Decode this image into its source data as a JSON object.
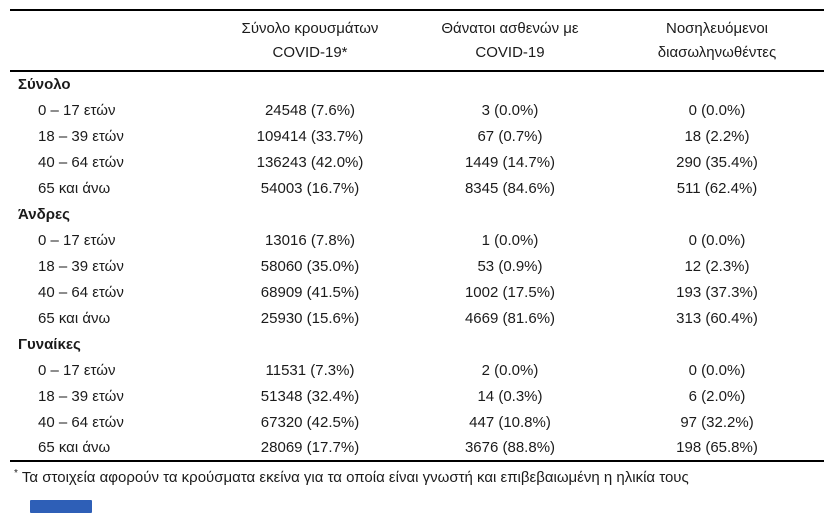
{
  "header": {
    "col_cases": {
      "line1": "Σύνολο κρουσμάτων",
      "line2": "COVID-19*"
    },
    "col_deaths": {
      "line1": "Θάνατοι ασθενών με",
      "line2": "COVID-19"
    },
    "col_icu": {
      "line1": "Νοσηλευόμενοι",
      "line2": "διασωληνωθέντες"
    }
  },
  "rows": [
    {
      "type": "section",
      "label": "Σύνολο"
    },
    {
      "type": "data",
      "label": "0 – 17 ετών",
      "cases": "24548 (7.6%)",
      "deaths": "3 (0.0%)",
      "intubated": "0 (0.0%)"
    },
    {
      "type": "data",
      "label": "18 – 39 ετών",
      "cases": "109414 (33.7%)",
      "deaths": "67 (0.7%)",
      "intubated": "18 (2.2%)"
    },
    {
      "type": "data",
      "label": "40 – 64 ετών",
      "cases": "136243 (42.0%)",
      "deaths": "1449 (14.7%)",
      "intubated": "290 (35.4%)"
    },
    {
      "type": "data",
      "label": "65 και άνω",
      "cases": "54003 (16.7%)",
      "deaths": "8345 (84.6%)",
      "intubated": "511 (62.4%)"
    },
    {
      "type": "section",
      "label": "Άνδρες"
    },
    {
      "type": "data",
      "label": "0 – 17 ετών",
      "cases": "13016 (7.8%)",
      "deaths": "1 (0.0%)",
      "intubated": "0 (0.0%)"
    },
    {
      "type": "data",
      "label": "18 – 39 ετών",
      "cases": "58060 (35.0%)",
      "deaths": "53 (0.9%)",
      "intubated": "12 (2.3%)"
    },
    {
      "type": "data",
      "label": "40 – 64 ετών",
      "cases": "68909 (41.5%)",
      "deaths": "1002 (17.5%)",
      "intubated": "193 (37.3%)"
    },
    {
      "type": "data",
      "label": "65 και άνω",
      "cases": "25930 (15.6%)",
      "deaths": "4669 (81.6%)",
      "intubated": "313 (60.4%)"
    },
    {
      "type": "section",
      "label": "Γυναίκες"
    },
    {
      "type": "data",
      "label": "0 – 17 ετών",
      "cases": "11531 (7.3%)",
      "deaths": "2 (0.0%)",
      "intubated": "0 (0.0%)"
    },
    {
      "type": "data",
      "label": "18 – 39 ετών",
      "cases": "51348 (32.4%)",
      "deaths": "14 (0.3%)",
      "intubated": "6 (2.0%)"
    },
    {
      "type": "data",
      "label": "40 – 64 ετών",
      "cases": "67320 (42.5%)",
      "deaths": "447 (10.8%)",
      "intubated": "97 (32.2%)"
    },
    {
      "type": "data",
      "label": "65 και άνω",
      "cases": "28069 (17.7%)",
      "deaths": "3676 (88.8%)",
      "intubated": "198 (65.8%)"
    }
  ],
  "footnote": {
    "marker": "*",
    "text": "Τα στοιχεία αφορούν τα κρούσματα εκείνα για τα οποία είναι γνωστή και επιβεβαιωμένη η ηλικία τους"
  },
  "colors": {
    "rule": "#000000",
    "text": "#1b1b1b",
    "blue_mark": "#2e5fb7"
  }
}
